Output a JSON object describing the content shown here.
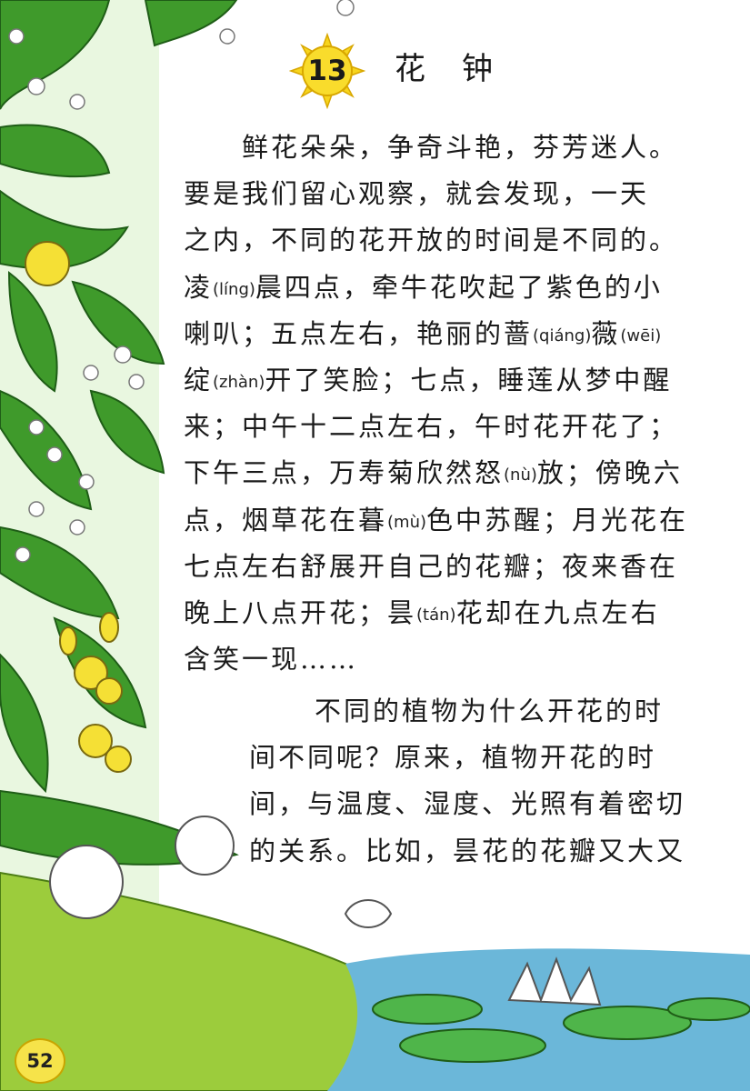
{
  "lesson": {
    "number": "13",
    "title": "花钟"
  },
  "paragraph1": {
    "lines": [
      [
        "鲜花朵朵，争奇斗艳，芬芳迷人。"
      ],
      [
        "要是我们留心观察，就会发现，一天"
      ],
      [
        "之内，不同的花开放的时间是不同的。"
      ],
      [
        "凌",
        {
          "py": "(líng)"
        },
        "晨四点，牵牛花吹起了紫色的小"
      ],
      [
        "喇叭；五点左右，艳丽的蔷",
        {
          "py": "(qiáng)"
        },
        "薇",
        {
          "py": "(wēi)"
        }
      ],
      [
        "绽",
        {
          "py": "(zhàn)"
        },
        "开了笑脸；七点，睡莲从梦中醒"
      ],
      [
        "来；中午十二点左右，午时花开花了；"
      ],
      [
        "下午三点，万寿菊欣然怒",
        {
          "py": "(nù)"
        },
        "放；傍晚六"
      ],
      [
        "点，烟草花在暮",
        {
          "py": "(mù)"
        },
        "色中苏醒；月光花在"
      ],
      [
        "七点左右舒展开自己的花瓣；夜来香在"
      ],
      [
        "晚上八点开花；昙",
        {
          "py": "(tán)"
        },
        "花却在九点左右"
      ],
      [
        "含笑一现……"
      ]
    ]
  },
  "paragraph2": {
    "lines": [
      [
        "不同的植物为什么开花的时"
      ],
      [
        "间不同呢？原来，植物开花的时"
      ],
      [
        "间，与温度、湿度、光照有着密切"
      ],
      [
        "的关系。比如，昙花的花瓣又大又"
      ]
    ]
  },
  "page_number": "52",
  "colors": {
    "leaf": "#3f9a2b",
    "water": "#6bb7d9",
    "sun": "#f7d51d",
    "grass": "#9ccc3c"
  }
}
